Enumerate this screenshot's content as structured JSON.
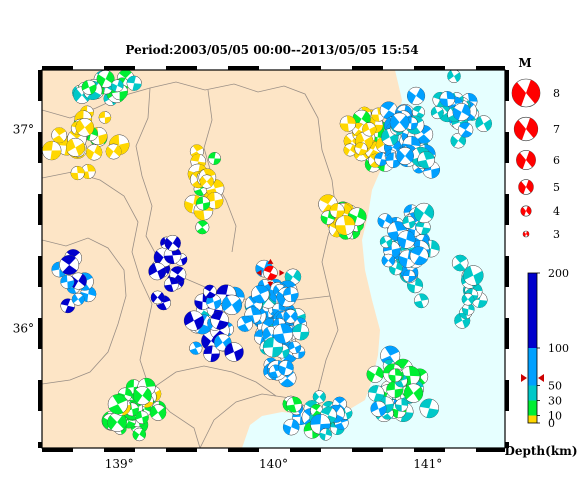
{
  "title": "Period:2003/05/05 00:00--2013/05/05 15:54",
  "map": {
    "lon_range": [
      138.5,
      141.5
    ],
    "lat_range": [
      35.4,
      37.3
    ],
    "lon_ticks": [
      {
        "value": 139,
        "label": "139°"
      },
      {
        "value": 140,
        "label": "140°"
      },
      {
        "value": 141,
        "label": "141°"
      }
    ],
    "lat_ticks": [
      {
        "value": 37,
        "label": "37°"
      },
      {
        "value": 36,
        "label": "36°"
      }
    ],
    "land_color": "#fde5c6",
    "sea_color": "#e6ffff",
    "mainshock": {
      "lon": 139.98,
      "lat": 36.28,
      "color": "#ff0000"
    }
  },
  "magnitude_legend": {
    "header": "M",
    "items": [
      {
        "label": "8",
        "m": 8
      },
      {
        "label": "7",
        "m": 7
      },
      {
        "label": "6",
        "m": 6
      },
      {
        "label": "5",
        "m": 5
      },
      {
        "label": "4",
        "m": 4
      },
      {
        "label": "3",
        "m": 3
      }
    ],
    "color": "#ff0000"
  },
  "depth_scale": {
    "label": "Depth(km)",
    "max": 200,
    "ticks": [
      {
        "value": 200,
        "label": "200"
      },
      {
        "value": 100,
        "label": "100"
      },
      {
        "value": 50,
        "label": "50"
      },
      {
        "value": 30,
        "label": "30"
      },
      {
        "value": 10,
        "label": "10"
      },
      {
        "value": 0,
        "label": "0"
      }
    ],
    "bands": [
      {
        "from": 0,
        "to": 10,
        "color": "#ffd700"
      },
      {
        "from": 10,
        "to": 30,
        "color": "#00ee33"
      },
      {
        "from": 30,
        "to": 50,
        "color": "#00c8c8"
      },
      {
        "from": 50,
        "to": 100,
        "color": "#00a0ff"
      },
      {
        "from": 100,
        "to": 200,
        "color": "#0000cc"
      }
    ],
    "mainshock_depth": 60
  }
}
